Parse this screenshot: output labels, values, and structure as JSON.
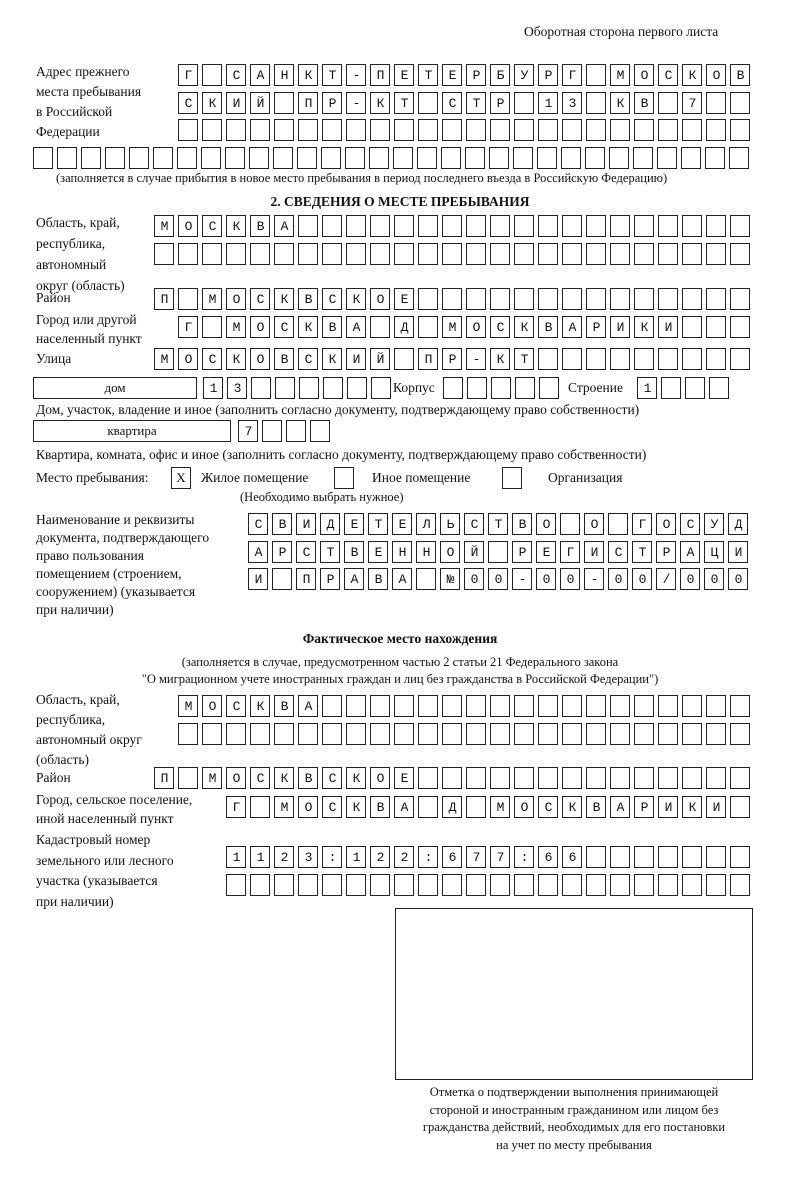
{
  "header": {
    "side_note": "Оборотная сторона первого листа"
  },
  "previous_address": {
    "label": "Адрес прежнего\nместа пребывания\nв Российской\nФедерации",
    "rows": [
      "Г САНКТ-ПЕТЕРБУРГ МОСКОВ",
      "СКИЙ ПР-КТ СТР 13 КВ 7  ",
      "",
      ""
    ],
    "note": "(заполняется в случае прибытия в новое место пребывания в период последнего въезда в Российскую Федерацию)"
  },
  "section2": {
    "title": "2. СВЕДЕНИЯ О МЕСТЕ ПРЕБЫВАНИЯ",
    "region_label": "Область, край,\nреспублика,\nавтономный\nокруг (область)",
    "region_rows": [
      "МОСКВА",
      ""
    ],
    "district_label": "Район",
    "district": "П МОСКВСКОЕ",
    "city_label": "Город или другой\nнаселенный пункт",
    "city": "Г МОСКВА Д МОСКВАРИКИ",
    "street_label": "Улица",
    "street": "МОСКОВСКИЙ ПР-КТ",
    "house_type": "дом",
    "house_number": "13",
    "korpus_label": "Корпус",
    "korpus": "",
    "stroenie_label": "Строение",
    "stroenie": "1",
    "house_note": "Дом, участок, владение и иное (заполнить согласно документу, подтверждающему право собственности)",
    "flat_type": "квартира",
    "flat_number": "7",
    "flat_note": "Квартира, комната, офис и иное (заполнить согласно документу, подтверждающему право собственности)",
    "stay_label": "Место пребывания:",
    "options": [
      {
        "label": "Жилое помещение",
        "mark": "X"
      },
      {
        "label": "Иное помещение",
        "mark": ""
      },
      {
        "label": "Организация",
        "mark": ""
      }
    ],
    "options_note": "(Необходимо выбрать нужное)",
    "doc_label": "Наименование и реквизиты\nдокумента, подтверждающего\nправо пользования\nпомещением (строением,\nсооружением) (указывается\nпри наличии)",
    "doc_rows": [
      "СВИДЕТЕЛЬСТВО О ГОСУД",
      "АРСТВЕННОЙ РЕГИСТРАЦИ",
      "И ПРАВА №00-00-00/000"
    ]
  },
  "actual": {
    "title": "Фактическое место нахождения",
    "note1": "(заполняется в случае, предусмотренном частью 2 статьи 21 Федерального закона",
    "note2": "\"О миграционном учете иностранных граждан и лиц без гражданства в Российской Федерации\")",
    "region_label": "Область, край,\nреспублика,\nавтономный округ\n(область)",
    "region_rows": [
      "МОСКВА",
      ""
    ],
    "district_label": "Район",
    "district": "П МОСКВСКОЕ",
    "city_label": "Город, сельское поселение,\nиной населенный пункт",
    "city": "Г МОСКВА Д МОСКВАРИКИ",
    "cadastre_label": "Кадастровый номер\nземельного или лесного\nучастка (указывается\nпри наличии)",
    "cadastre_rows": [
      "1123:122:677:66",
      ""
    ]
  },
  "stamp_box": {
    "caption": "Отметка о подтверждении выполнения принимающей\nстороной и иностранным гражданином или лицом без\nгражданства действий, необходимых для его постановки\nна учет по месту пребывания"
  }
}
